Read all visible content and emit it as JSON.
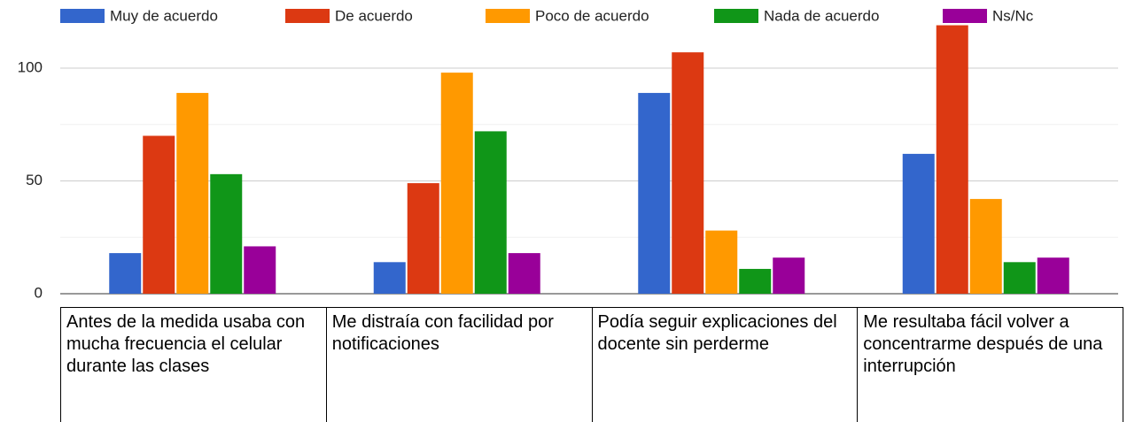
{
  "chart_data": {
    "type": "bar",
    "categories": [
      "Antes de la medida usaba con mucha frecuencia el celular durante las clases",
      "Me distraía con facilidad por notificaciones",
      "Podía seguir explicaciones del docente sin perderme",
      "Me resultaba fácil volver a concentrarme después de una interrupción"
    ],
    "series": [
      {
        "name": "Muy de acuerdo",
        "color": "#3366cc",
        "values": [
          18,
          14,
          89,
          62
        ]
      },
      {
        "name": "De acuerdo",
        "color": "#dc3912",
        "values": [
          70,
          49,
          107,
          119
        ]
      },
      {
        "name": "Poco de acuerdo",
        "color": "#ff9900",
        "values": [
          89,
          98,
          28,
          42
        ]
      },
      {
        "name": "Nada de acuerdo",
        "color": "#109618",
        "values": [
          53,
          72,
          11,
          14
        ]
      },
      {
        "name": "Ns/Nc",
        "color": "#990099",
        "values": [
          21,
          18,
          16,
          16
        ]
      }
    ],
    "ylim": [
      0,
      120
    ],
    "yticks": [
      0,
      50,
      100
    ],
    "minor_yticks": [
      25,
      75
    ],
    "grid": true,
    "legend": "top"
  }
}
